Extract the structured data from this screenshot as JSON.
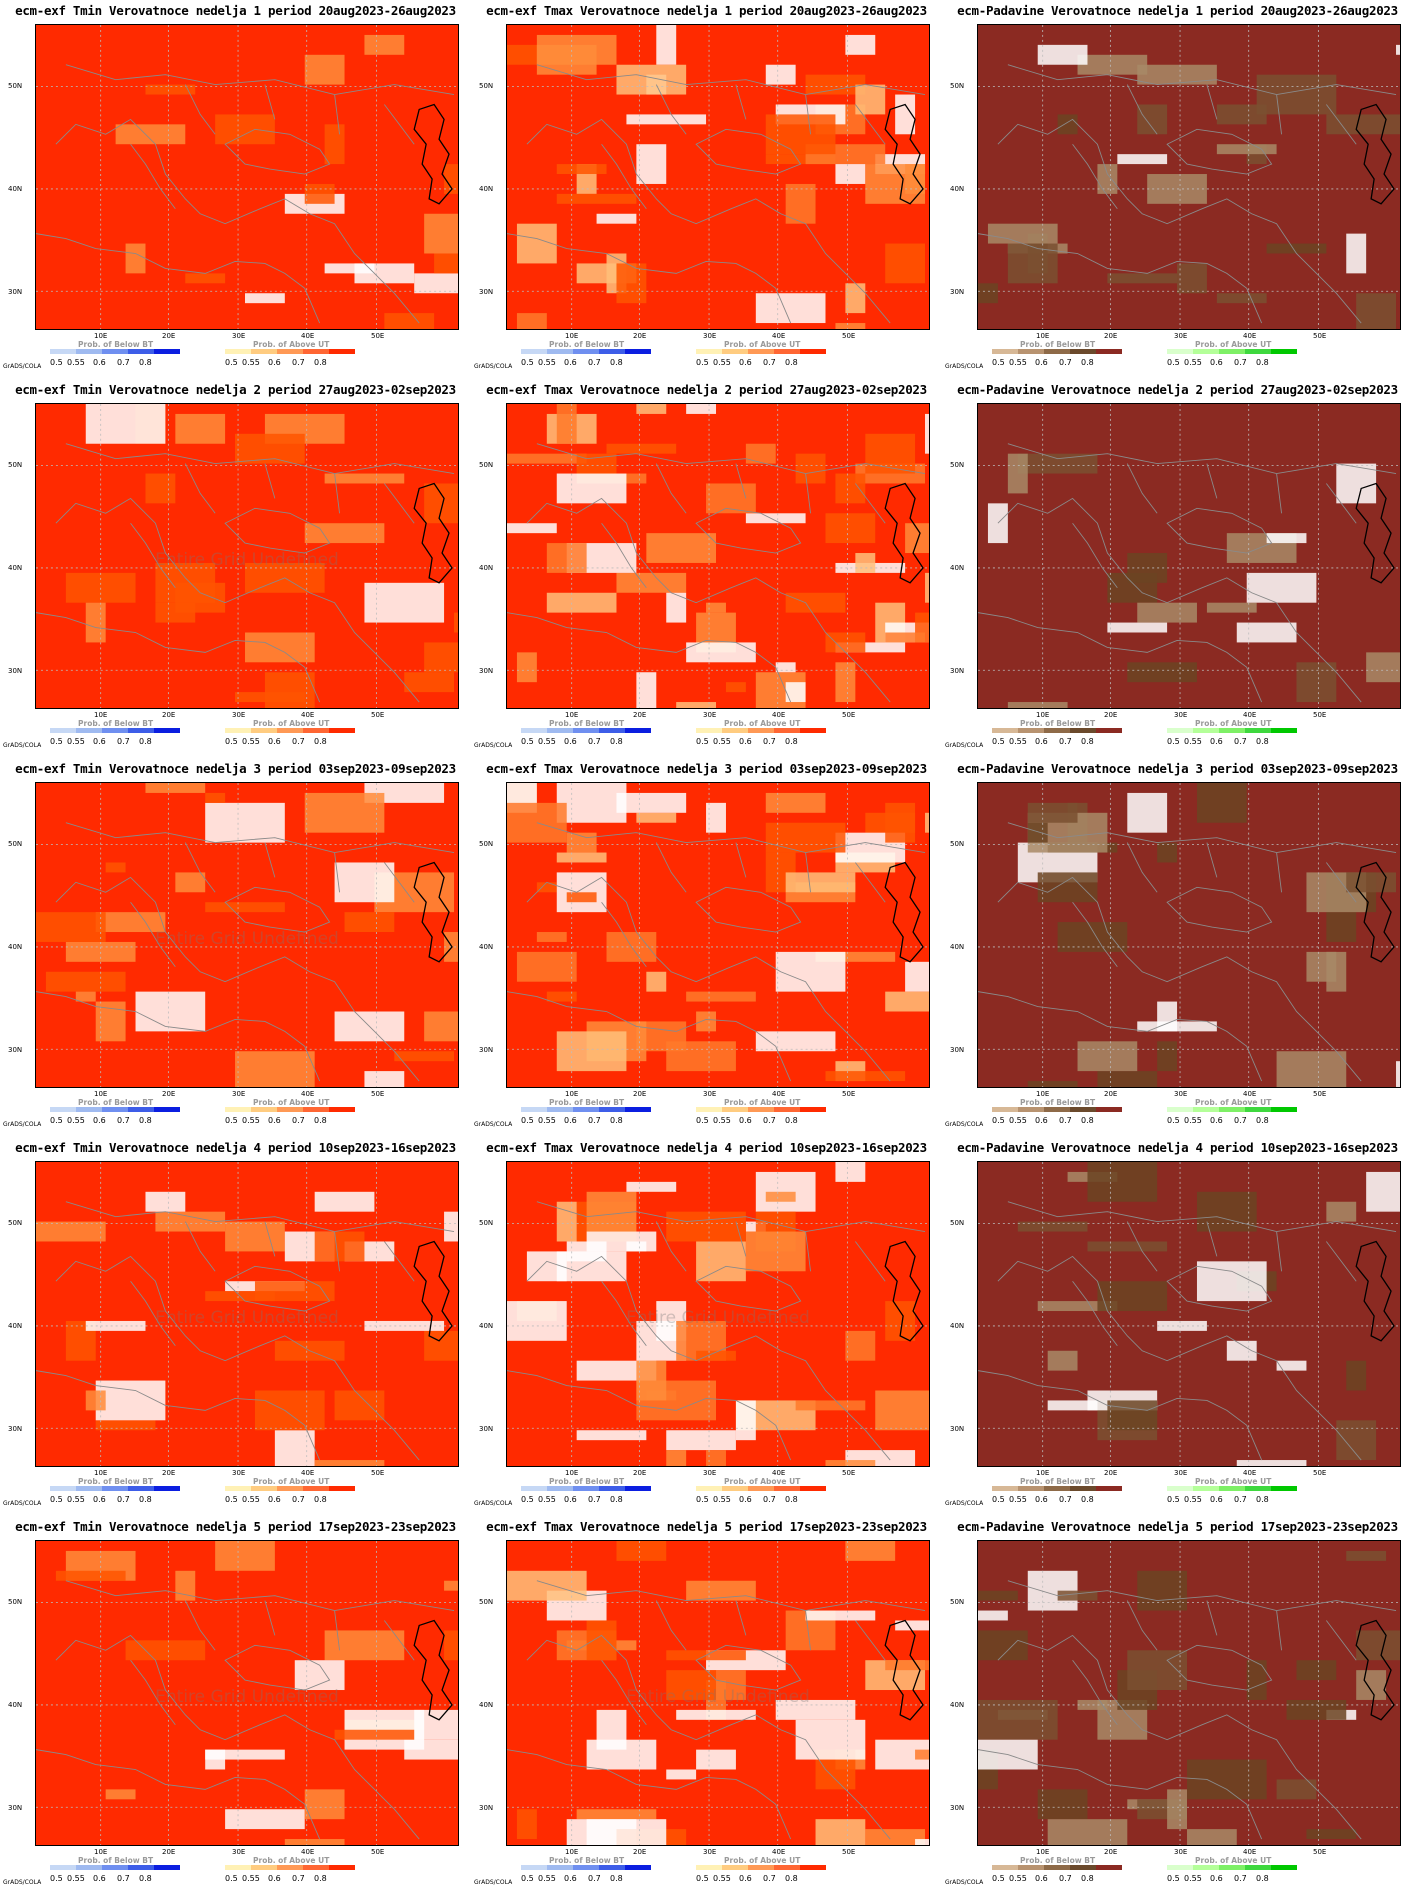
{
  "palettes": {
    "tmin": {
      "field": [
        "#ff2a00",
        "#ff2a00",
        "#ff2a00",
        "#ff5500",
        "#ff8c3a",
        "#ffffff",
        "#ff2a00",
        "#ff2a00"
      ],
      "below": [
        "#c6d8f5",
        "#9fbaf0",
        "#6f8ff0",
        "#3d5de8",
        "#0b1ee0"
      ],
      "above": [
        "#fff1b5",
        "#ffcc80",
        "#ff9955",
        "#ff6633",
        "#ff2a00"
      ]
    },
    "tmax": {
      "field": [
        "#ff2a00",
        "#ff5500",
        "#ff8c3a",
        "#ffc07a",
        "#ffffff",
        "#ffffff",
        "#ff2a00",
        "#ff7a2a"
      ],
      "below": [
        "#c6d8f5",
        "#9fbaf0",
        "#6f8ff0",
        "#3d5de8",
        "#0b1ee0"
      ],
      "above": [
        "#fff1b5",
        "#ffcc80",
        "#ff9955",
        "#ff6633",
        "#ff2a00"
      ]
    },
    "prec": {
      "field": [
        "#8b2a22",
        "#8b2a22",
        "#8b2a22",
        "#6b4422",
        "#a88a66",
        "#ffffff",
        "#8b2a22",
        "#7a5030"
      ],
      "below": [
        "#d7b896",
        "#b89370",
        "#8e6a48",
        "#6b4a2c",
        "#8b2a22"
      ],
      "above": [
        "#d9ffcc",
        "#b4ff99",
        "#7ef066",
        "#3ed83e",
        "#00c800"
      ]
    }
  },
  "legend_labels": {
    "below_title": "Prob. of Below BT",
    "above_title": "Prob. of Above UT",
    "ticks": [
      "0.5",
      "0.55",
      "0.6",
      "0.7",
      "0.8"
    ],
    "grads": "GrADS/COLA"
  },
  "axes": {
    "lat_labels": [
      "50N",
      "40N",
      "30N"
    ],
    "lon_labels": [
      "10E",
      "20E",
      "30E",
      "40E",
      "50E"
    ]
  },
  "undefined_text": "Entire Grid Undefined",
  "panels": [
    {
      "title": "ecm-exf Tmin Verovatnoce nedelja 1 period 20aug2023-26aug2023",
      "palette": "tmin",
      "seed": 11,
      "undefined": false
    },
    {
      "title": "ecm-exf Tmax Verovatnoce nedelja 1 period 20aug2023-26aug2023",
      "palette": "tmax",
      "seed": 12,
      "undefined": false
    },
    {
      "title": "ecm-Padavine Verovatnoce nedelja 1 period 20aug2023-26aug2023",
      "palette": "prec",
      "seed": 13,
      "undefined": false
    },
    {
      "title": "ecm-exf Tmin Verovatnoce nedelja 2 period 27aug2023-02sep2023",
      "palette": "tmin",
      "seed": 21,
      "undefined": true
    },
    {
      "title": "ecm-exf Tmax Verovatnoce nedelja 2 period 27aug2023-02sep2023",
      "palette": "tmax",
      "seed": 22,
      "undefined": false
    },
    {
      "title": "ecm-Padavine Verovatnoce nedelja 2 period 27aug2023-02sep2023",
      "palette": "prec",
      "seed": 23,
      "undefined": false
    },
    {
      "title": "ecm-exf Tmin Verovatnoce nedelja 3 period 03sep2023-09sep2023",
      "palette": "tmin",
      "seed": 31,
      "undefined": true
    },
    {
      "title": "ecm-exf Tmax Verovatnoce nedelja 3 period 03sep2023-09sep2023",
      "palette": "tmax",
      "seed": 32,
      "undefined": false
    },
    {
      "title": "ecm-Padavine Verovatnoce nedelja 3 period 03sep2023-09sep2023",
      "palette": "prec",
      "seed": 33,
      "undefined": false
    },
    {
      "title": "ecm-exf Tmin Verovatnoce nedelja 4 period 10sep2023-16sep2023",
      "palette": "tmin",
      "seed": 41,
      "undefined": true
    },
    {
      "title": "ecm-exf Tmax Verovatnoce nedelja 4 period 10sep2023-16sep2023",
      "palette": "tmax",
      "seed": 42,
      "undefined": true
    },
    {
      "title": "ecm-Padavine Verovatnoce nedelja 4 period 10sep2023-16sep2023",
      "palette": "prec",
      "seed": 43,
      "undefined": false
    },
    {
      "title": "ecm-exf Tmin Verovatnoce nedelja 5 period 17sep2023-23sep2023",
      "palette": "tmin",
      "seed": 51,
      "undefined": true
    },
    {
      "title": "ecm-exf Tmax Verovatnoce nedelja 5 period 17sep2023-23sep2023",
      "palette": "tmax",
      "seed": 52,
      "undefined": true
    },
    {
      "title": "ecm-Padavine Verovatnoce nedelja 5 period 17sep2023-23sep2023",
      "palette": "prec",
      "seed": 53,
      "undefined": false
    }
  ]
}
